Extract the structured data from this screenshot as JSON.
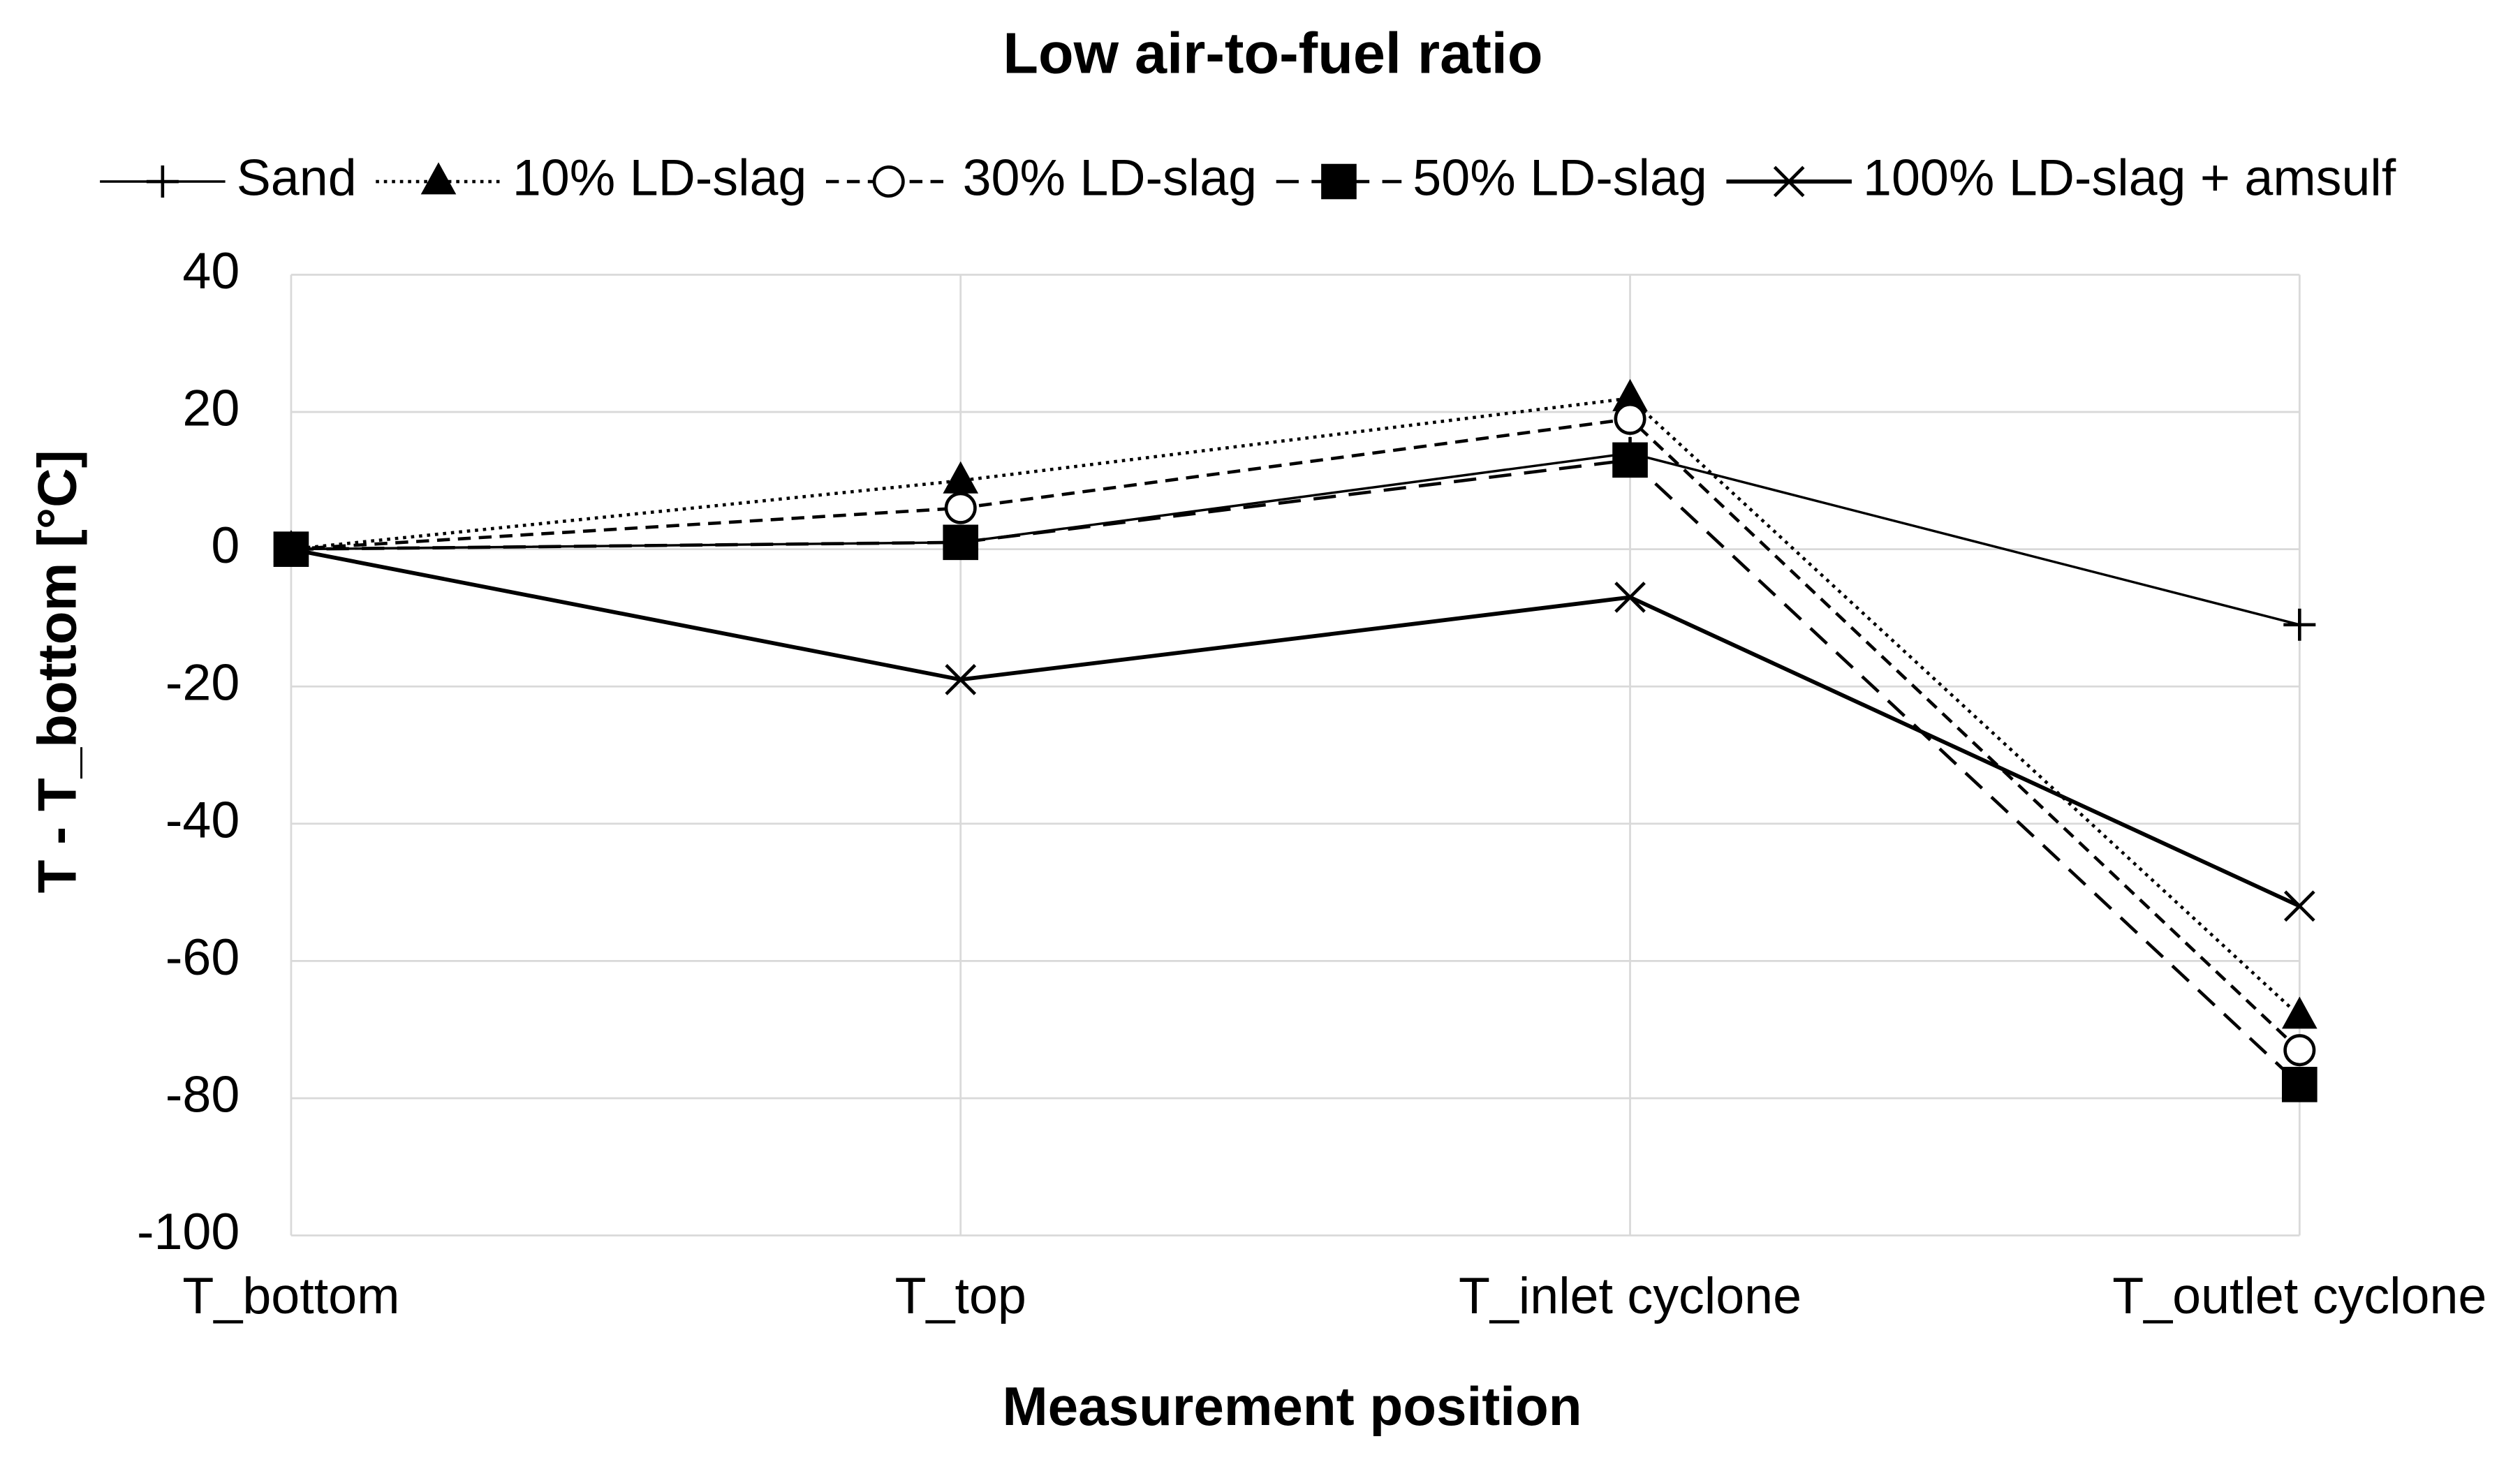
{
  "chart_data": {
    "type": "line",
    "title": "Low air-to-fuel ratio",
    "xlabel": "Measurement position",
    "ylabel": "T - T_bottom [°C]",
    "categories": [
      "T_bottom",
      "T_top",
      "T_inlet cyclone",
      "T_outlet cyclone"
    ],
    "series": [
      {
        "name": "Sand",
        "color": "#000000",
        "dash": "solid",
        "width": 1.5,
        "marker": "plus",
        "values": [
          0,
          1,
          14,
          -11
        ]
      },
      {
        "name": "10% LD-slag",
        "color": "#000000",
        "dash": "dotted",
        "width": 2,
        "marker": "triangle",
        "values": [
          0,
          10,
          22,
          -68
        ]
      },
      {
        "name": "30% LD-slag",
        "color": "#000000",
        "dash": "dashed",
        "width": 2,
        "marker": "circle",
        "values": [
          0,
          6,
          19,
          -73
        ]
      },
      {
        "name": "50% LD-slag",
        "color": "#000000",
        "dash": "longdash",
        "width": 2,
        "marker": "square",
        "values": [
          0,
          1,
          13,
          -78
        ]
      },
      {
        "name": "100% LD-slag + amsulf",
        "color": "#000000",
        "dash": "solid",
        "width": 2.5,
        "marker": "x",
        "values": [
          0,
          -19,
          -7,
          -52
        ]
      }
    ],
    "ylim": [
      -100,
      40
    ],
    "yticks": [
      -100,
      -80,
      -60,
      -40,
      -20,
      0,
      20,
      40
    ],
    "grid": true,
    "legend": "top"
  }
}
